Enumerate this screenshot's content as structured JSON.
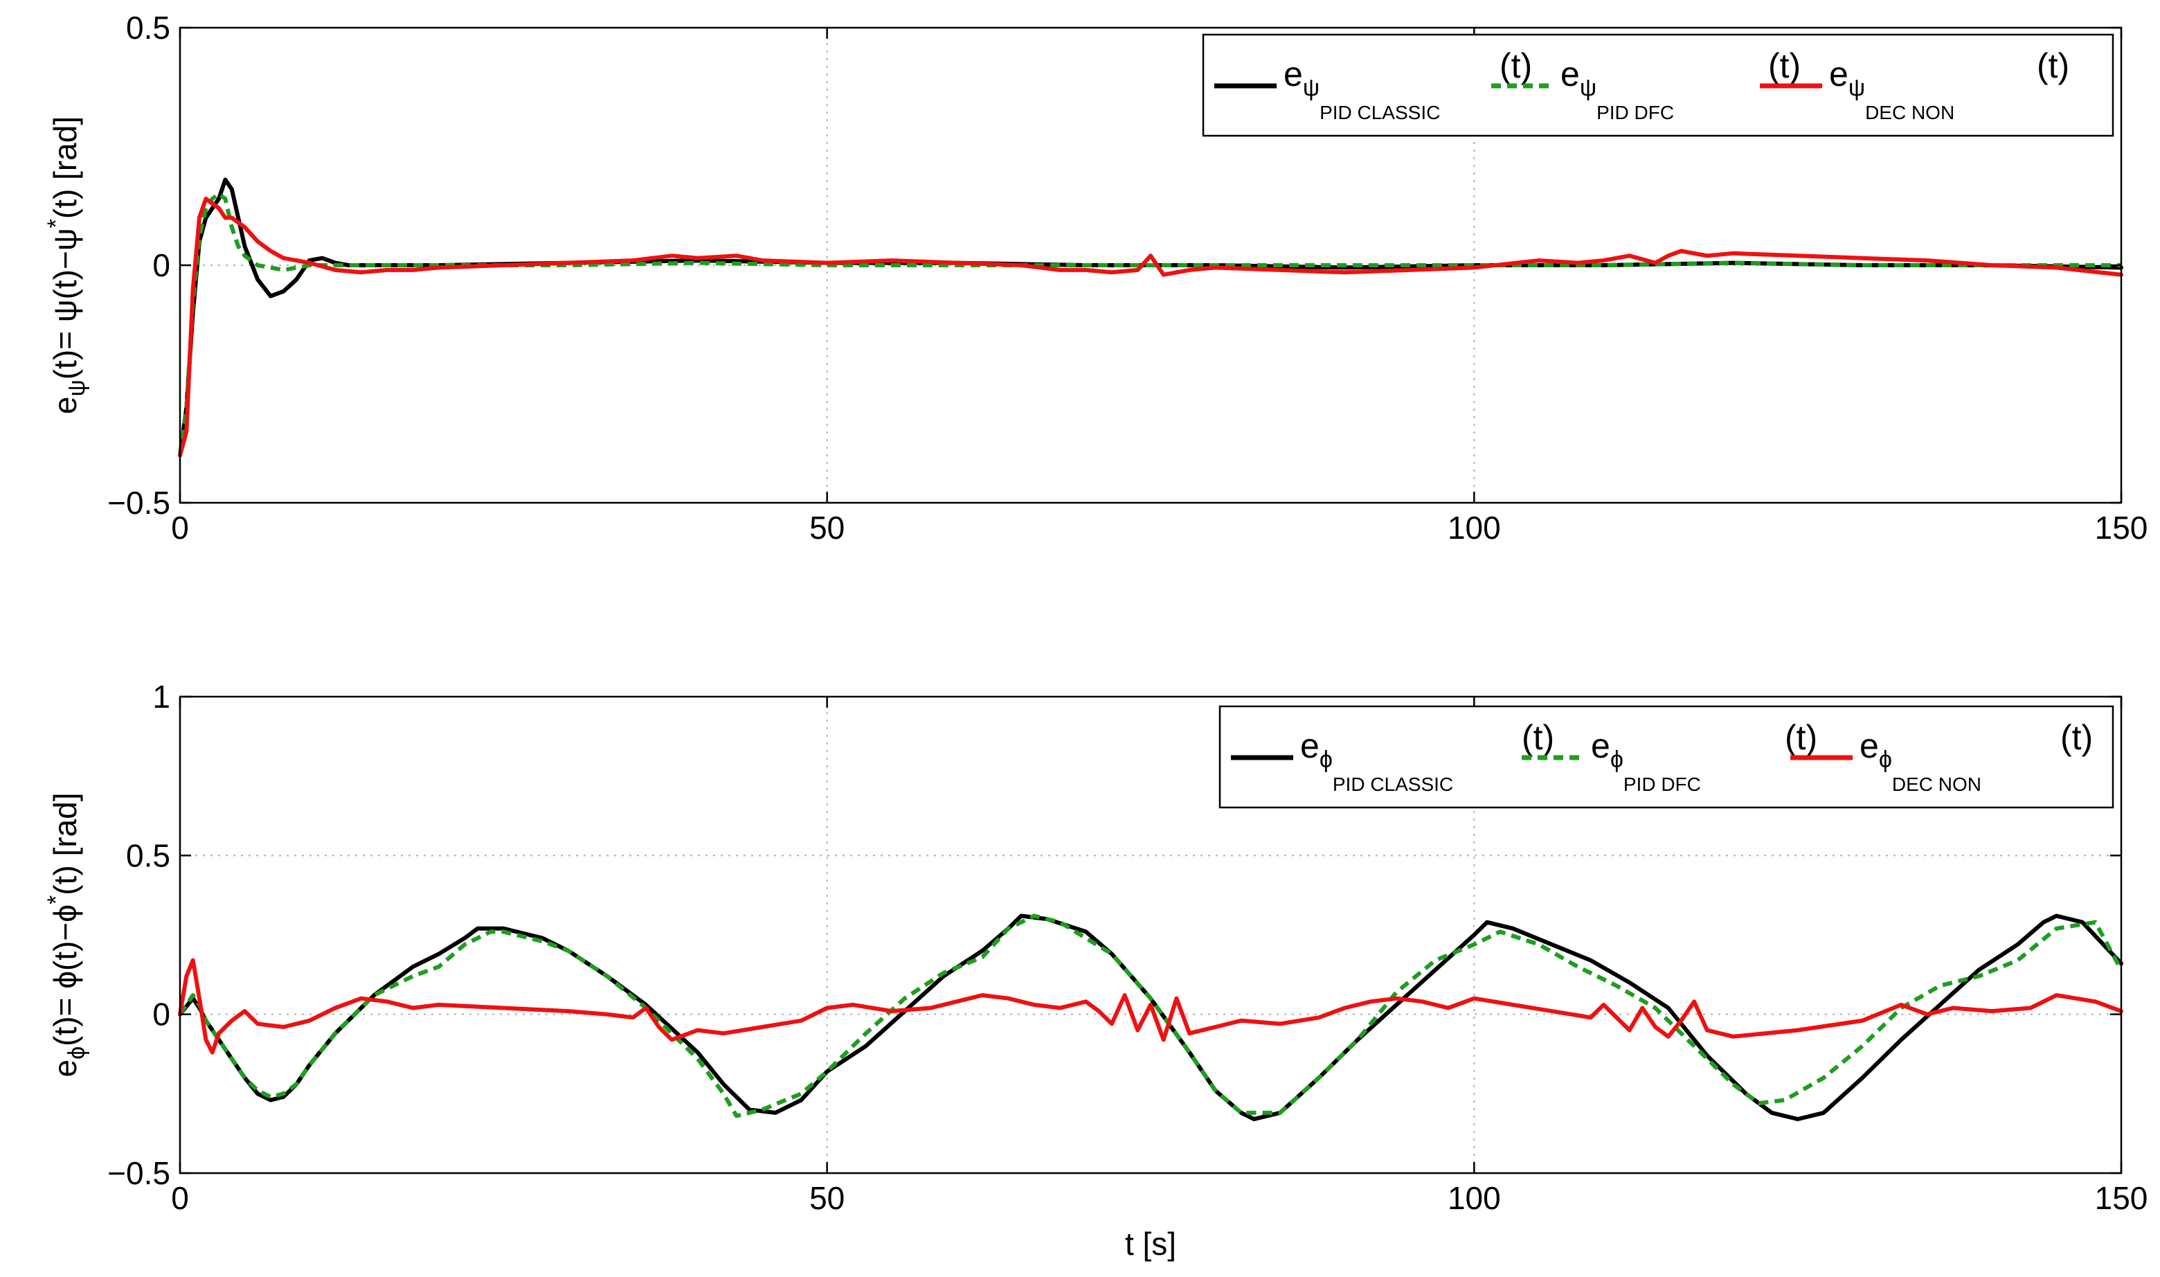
{
  "chart_data": [
    {
      "type": "line",
      "name": "top-panel",
      "ylabel_parts": {
        "e": "e",
        "sub": "ψ",
        "eq": "(t)= ψ(t)−ψ",
        "sup": "*",
        "tail": "(t) [rad]"
      },
      "xlim": [
        0,
        150
      ],
      "ylim": [
        -0.5,
        0.5
      ],
      "x_ticks": [
        0,
        50,
        100,
        150
      ],
      "y_ticks": [
        -0.5,
        0,
        0.5
      ],
      "x_tick_labels": [
        "0",
        "50",
        "100",
        "150"
      ],
      "y_tick_labels": [
        "−0.5",
        "0",
        "0.5"
      ],
      "grid": true,
      "legend_placement": "top-right",
      "legend": [
        {
          "e": "e",
          "sym": "ψ",
          "sub": "PID CLASSIC",
          "t": "(t)",
          "color": "#000000",
          "dash": "solid"
        },
        {
          "e": "e",
          "sym": "ψ",
          "sub": "PID DFC",
          "t": "(t)",
          "color": "#1e9e1e",
          "dash": "dashed"
        },
        {
          "e": "e",
          "sym": "ψ",
          "sub": "DEC NON",
          "t": "(t)",
          "color": "#ee1111",
          "dash": "solid"
        }
      ],
      "series": [
        {
          "color": "#000000",
          "dash": "solid",
          "x": [
            0,
            0.5,
            1,
            1.5,
            2,
            2.5,
            3,
            3.5,
            4,
            4.5,
            5,
            6,
            7,
            8,
            9,
            10,
            11,
            12,
            13,
            15,
            20,
            30,
            40,
            50,
            60,
            70,
            80,
            90,
            100,
            110,
            120,
            130,
            140,
            150
          ],
          "y": [
            -0.4,
            -0.3,
            -0.1,
            0.05,
            0.1,
            0.12,
            0.14,
            0.18,
            0.16,
            0.1,
            0.04,
            -0.03,
            -0.065,
            -0.055,
            -0.03,
            0.01,
            0.015,
            0.005,
            0,
            0,
            0,
            0.005,
            0.01,
            0.005,
            0.005,
            0,
            0,
            -0.005,
            0,
            0,
            0.005,
            0,
            0,
            -0.005
          ]
        },
        {
          "color": "#1e9e1e",
          "dash": "dashed",
          "x": [
            0,
            0.5,
            1,
            1.5,
            2,
            2.5,
            3,
            3.5,
            4,
            4.5,
            5,
            6,
            7,
            8,
            9,
            10,
            11,
            12,
            13,
            15,
            20,
            30,
            40,
            50,
            60,
            70,
            80,
            90,
            100,
            110,
            120,
            130,
            140,
            150
          ],
          "y": [
            -0.4,
            -0.3,
            -0.08,
            0.06,
            0.12,
            0.14,
            0.15,
            0.14,
            0.08,
            0.04,
            0.02,
            0,
            -0.005,
            -0.01,
            -0.005,
            0,
            0,
            0,
            0,
            0,
            0,
            0,
            0.005,
            0,
            0,
            0,
            0,
            0,
            0,
            0,
            0.005,
            0,
            0,
            0
          ]
        },
        {
          "color": "#ee1111",
          "dash": "solid",
          "x": [
            0,
            0.5,
            1,
            1.5,
            2,
            2.5,
            3,
            3.5,
            4,
            5,
            6,
            7,
            8,
            9,
            10,
            12,
            14,
            16,
            18,
            20,
            25,
            30,
            35,
            38,
            40,
            43,
            45,
            50,
            55,
            60,
            65,
            68,
            70,
            72,
            74,
            75,
            76,
            78,
            80,
            85,
            90,
            95,
            100,
            105,
            108,
            110,
            112,
            114,
            115,
            116,
            118,
            120,
            125,
            130,
            135,
            140,
            145,
            150
          ],
          "y": [
            -0.4,
            -0.35,
            -0.05,
            0.1,
            0.14,
            0.13,
            0.12,
            0.1,
            0.1,
            0.08,
            0.05,
            0.03,
            0.015,
            0.01,
            0.005,
            -0.01,
            -0.015,
            -0.01,
            -0.01,
            -0.005,
            0,
            0.005,
            0.01,
            0.02,
            0.015,
            0.02,
            0.01,
            0.005,
            0.01,
            0.005,
            0,
            -0.01,
            -0.01,
            -0.015,
            -0.01,
            0.02,
            -0.02,
            -0.01,
            -0.005,
            -0.01,
            -0.015,
            -0.01,
            -0.005,
            0.01,
            0.005,
            0.01,
            0.02,
            0.005,
            0.02,
            0.03,
            0.02,
            0.025,
            0.02,
            0.015,
            0.01,
            0,
            -0.005,
            -0.02
          ]
        }
      ]
    },
    {
      "type": "line",
      "name": "bottom-panel",
      "ylabel_parts": {
        "e": "e",
        "sub": "ϕ",
        "eq": "(t)= ϕ(t)−ϕ",
        "sup": "*",
        "tail": "(t) [rad]"
      },
      "xlabel": "t [s]",
      "xlim": [
        0,
        150
      ],
      "ylim": [
        -0.5,
        1
      ],
      "x_ticks": [
        0,
        50,
        100,
        150
      ],
      "y_ticks": [
        -0.5,
        0,
        0.5,
        1
      ],
      "x_tick_labels": [
        "0",
        "50",
        "100",
        "150"
      ],
      "y_tick_labels": [
        "−0.5",
        "0",
        "0.5",
        "1"
      ],
      "grid": true,
      "legend_placement": "top-right",
      "legend": [
        {
          "e": "e",
          "sym": "ϕ",
          "sub": "PID CLASSIC",
          "t": "(t)",
          "color": "#000000",
          "dash": "solid"
        },
        {
          "e": "e",
          "sym": "ϕ",
          "sub": "PID DFC",
          "t": "(t)",
          "color": "#1e9e1e",
          "dash": "dashed"
        },
        {
          "e": "e",
          "sym": "ϕ",
          "sub": "DEC NON",
          "t": "(t)",
          "color": "#ee1111",
          "dash": "solid"
        }
      ],
      "series": [
        {
          "color": "#000000",
          "dash": "solid",
          "x": [
            0,
            1,
            1.5,
            2,
            3,
            4,
            5,
            6,
            7,
            8,
            9,
            10,
            12,
            15,
            18,
            20,
            22,
            23,
            25,
            28,
            30,
            33,
            36,
            40,
            42,
            44,
            46,
            48,
            50,
            53,
            56,
            59,
            62,
            64,
            65,
            67,
            70,
            72,
            75,
            78,
            80,
            82,
            83,
            85,
            88,
            91,
            94,
            97,
            100,
            101,
            103,
            106,
            109,
            112,
            115,
            118,
            121,
            123,
            125,
            127,
            130,
            133,
            136,
            139,
            142,
            144,
            145,
            147,
            150
          ],
          "y": [
            0,
            0.05,
            0.02,
            -0.02,
            -0.08,
            -0.14,
            -0.2,
            -0.25,
            -0.27,
            -0.26,
            -0.22,
            -0.16,
            -0.06,
            0.06,
            0.15,
            0.19,
            0.24,
            0.27,
            0.27,
            0.24,
            0.2,
            0.12,
            0.03,
            -0.12,
            -0.22,
            -0.3,
            -0.31,
            -0.27,
            -0.18,
            -0.1,
            0.01,
            0.12,
            0.2,
            0.27,
            0.31,
            0.3,
            0.26,
            0.19,
            0.05,
            -0.12,
            -0.24,
            -0.31,
            -0.33,
            -0.31,
            -0.2,
            -0.08,
            0.03,
            0.14,
            0.25,
            0.29,
            0.27,
            0.22,
            0.17,
            0.1,
            0.02,
            -0.13,
            -0.25,
            -0.31,
            -0.33,
            -0.31,
            -0.2,
            -0.08,
            0.03,
            0.14,
            0.22,
            0.29,
            0.31,
            0.29,
            0.16
          ]
        },
        {
          "color": "#1e9e1e",
          "dash": "dashed",
          "x": [
            0,
            1,
            1.5,
            2,
            3,
            4,
            5,
            6,
            7,
            8,
            9,
            10,
            12,
            15,
            18,
            20,
            22,
            24,
            25,
            28,
            30,
            33,
            36,
            40,
            42,
            43,
            45,
            48,
            50,
            53,
            56,
            59,
            62,
            64,
            66,
            68,
            70,
            72,
            75,
            78,
            80,
            82,
            85,
            88,
            91,
            94,
            97,
            100,
            102,
            105,
            108,
            111,
            114,
            117,
            120,
            122,
            124,
            127,
            130,
            133,
            136,
            139,
            142,
            145,
            148,
            150
          ],
          "y": [
            0,
            0.06,
            0.03,
            -0.02,
            -0.08,
            -0.14,
            -0.2,
            -0.24,
            -0.26,
            -0.25,
            -0.22,
            -0.16,
            -0.06,
            0.06,
            0.12,
            0.15,
            0.22,
            0.26,
            0.26,
            0.23,
            0.2,
            0.12,
            0.02,
            -0.14,
            -0.25,
            -0.32,
            -0.3,
            -0.25,
            -0.18,
            -0.06,
            0.05,
            0.13,
            0.18,
            0.27,
            0.31,
            0.29,
            0.24,
            0.19,
            0.05,
            -0.12,
            -0.24,
            -0.31,
            -0.31,
            -0.2,
            -0.08,
            0.07,
            0.17,
            0.22,
            0.26,
            0.22,
            0.15,
            0.09,
            0.02,
            -0.1,
            -0.22,
            -0.28,
            -0.27,
            -0.2,
            -0.1,
            0.02,
            0.09,
            0.12,
            0.17,
            0.27,
            0.29,
            0.14
          ]
        },
        {
          "color": "#ee1111",
          "dash": "solid",
          "x": [
            0,
            0.5,
            1,
            1.5,
            2,
            2.5,
            3,
            4,
            5,
            6,
            8,
            10,
            12,
            14,
            16,
            18,
            20,
            25,
            30,
            33,
            35,
            36,
            37,
            38,
            40,
            42,
            45,
            48,
            50,
            52,
            55,
            58,
            60,
            62,
            64,
            66,
            68,
            70,
            71,
            72,
            73,
            74,
            75,
            76,
            77,
            78,
            80,
            82,
            85,
            88,
            90,
            92,
            94,
            96,
            98,
            100,
            103,
            106,
            109,
            110,
            112,
            113,
            114,
            115,
            116,
            117,
            118,
            120,
            125,
            130,
            133,
            135,
            137,
            140,
            143,
            145,
            148,
            150
          ],
          "y": [
            0,
            0.12,
            0.17,
            0.05,
            -0.08,
            -0.12,
            -0.06,
            -0.02,
            0.01,
            -0.03,
            -0.04,
            -0.02,
            0.02,
            0.05,
            0.04,
            0.02,
            0.03,
            0.02,
            0.01,
            0,
            -0.01,
            0.02,
            -0.04,
            -0.08,
            -0.05,
            -0.06,
            -0.04,
            -0.02,
            0.02,
            0.03,
            0.01,
            0.02,
            0.04,
            0.06,
            0.05,
            0.03,
            0.02,
            0.04,
            0.01,
            -0.03,
            0.06,
            -0.05,
            0.03,
            -0.08,
            0.05,
            -0.06,
            -0.04,
            -0.02,
            -0.03,
            -0.01,
            0.02,
            0.04,
            0.05,
            0.04,
            0.02,
            0.05,
            0.03,
            0.01,
            -0.01,
            0.03,
            -0.05,
            0.02,
            -0.04,
            -0.07,
            -0.02,
            0.04,
            -0.05,
            -0.07,
            -0.05,
            -0.02,
            0.03,
            0,
            0.02,
            0.01,
            0.02,
            0.06,
            0.04,
            0.01
          ]
        }
      ]
    }
  ]
}
